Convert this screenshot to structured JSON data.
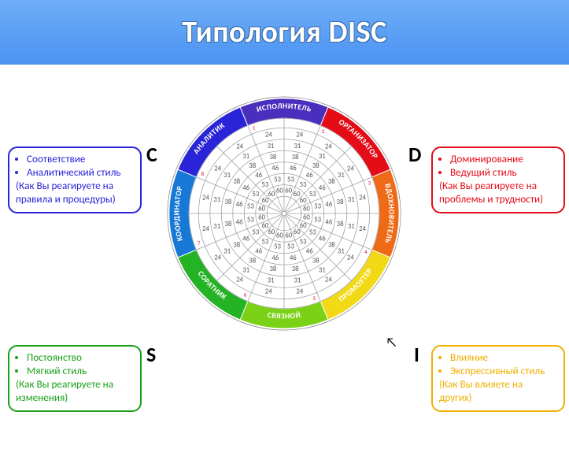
{
  "title": "Типология DISC",
  "letters": {
    "c": "C",
    "d": "D",
    "s": "S",
    "i": "I"
  },
  "boxes": {
    "c": {
      "color": "#2a24d8",
      "bullet1": "Соответствие",
      "bullet2": "Аналитический стиль",
      "sub": "(Как Вы реагируете на правила и процедуры)"
    },
    "d": {
      "color": "#e30c17",
      "bullet1": "Доминирование",
      "bullet2": "Ведущий стиль",
      "sub": "(Как Вы реагируете на проблемы и трудности)"
    },
    "s": {
      "color": "#1aa01a",
      "bullet1": "Постоянство",
      "bullet2": "Мягкий стиль",
      "sub": "(Как Вы реагируете на изменения)"
    },
    "i": {
      "color": "#f0b000",
      "bullet1": "Влияние",
      "bullet2": "Экспрессивный стиль",
      "sub": "(Как Вы влияете на других)"
    }
  },
  "wheel": {
    "segments": [
      {
        "label": "ИСПОЛНИТЕЛЬ",
        "color": "#4a2fbe"
      },
      {
        "label": "ОРГАНИЗАТОР",
        "color": "#e30c17"
      },
      {
        "label": "ВДОХНОВИТЕЛЬ",
        "color": "#ef6a16"
      },
      {
        "label": "ПРОМОУТЕР",
        "color": "#f2d916"
      },
      {
        "label": "СВЯЗНОЙ",
        "color": "#7ad115"
      },
      {
        "label": "СОРАТНИК",
        "color": "#24b324"
      },
      {
        "label": "КООРДИНАТОР",
        "color": "#1778d6"
      },
      {
        "label": "АНАЛИТИК",
        "color": "#2a24d8"
      }
    ],
    "ring_labels": [
      60,
      53,
      46,
      38,
      31,
      24
    ],
    "outer_scale": [
      1,
      2,
      3,
      4,
      5,
      6,
      7,
      8
    ],
    "rings_radii_pct": [
      18,
      30,
      42,
      54,
      66,
      78,
      90,
      100
    ],
    "grid_color": "#9ca0a5",
    "text_color": "#ffffff",
    "label_fontsize": 10
  }
}
